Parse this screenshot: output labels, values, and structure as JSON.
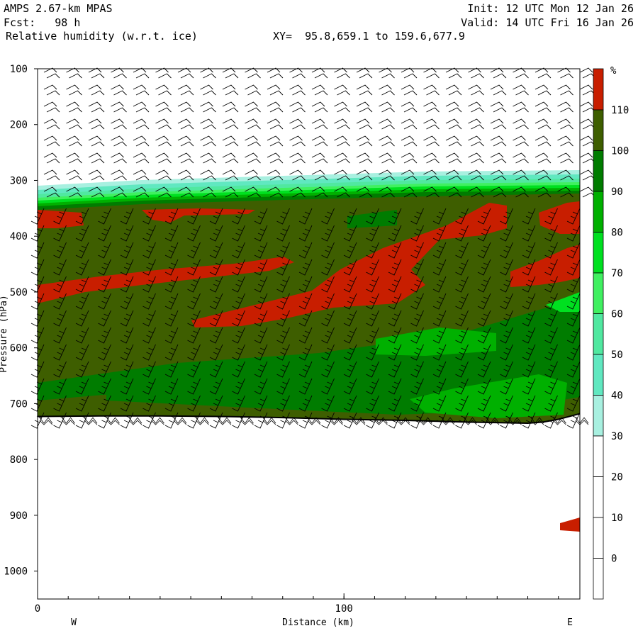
{
  "header": {
    "model": "AMPS 2.67-km MPAS",
    "init": "Init: 12 UTC Mon 12 Jan 26",
    "fcst": "Fcst:   98 h",
    "valid": "Valid: 14 UTC Fri 16 Jan 26",
    "field": "Relative humidity (w.r.t. ice)",
    "xy": "XY=  95.8,659.1 to 159.6,677.9"
  },
  "chart_data": {
    "type": "heatmap",
    "title": "Relative humidity (w.r.t. ice)",
    "xlabel": "Distance (km)",
    "ylabel": "Pressure (hPa)",
    "xlim": [
      0,
      177
    ],
    "ylim": [
      1050,
      100
    ],
    "x_ticks": [
      0,
      100
    ],
    "x_tick_labels": [
      "0",
      "100"
    ],
    "y_ticks": [
      100,
      200,
      300,
      400,
      500,
      600,
      700,
      800,
      900,
      1000
    ],
    "y_tick_labels": [
      "100",
      "200",
      "300",
      "400",
      "500",
      "600",
      "700",
      "800",
      "900",
      "1000"
    ],
    "endpoint_labels": {
      "left": "W",
      "right": "E"
    },
    "terrain_surface_hPa": {
      "x": [
        0,
        20,
        40,
        60,
        80,
        100,
        120,
        140,
        160,
        165,
        170,
        177
      ],
      "p": [
        723,
        722,
        722,
        723,
        725,
        728,
        730,
        733,
        735,
        733,
        728,
        718
      ]
    },
    "moist_layer_top_hPa": 300,
    "colorbar": {
      "unit": "%",
      "levels": [
        "110",
        "100",
        "90",
        "80",
        "70",
        "60",
        "50",
        "40",
        "30",
        "20",
        "10",
        "0"
      ],
      "colors": [
        "#c81e00",
        "#3e5e00",
        "#007c00",
        "#00b000",
        "#00e020",
        "#40f060",
        "#50e8a0",
        "#60e8c0",
        "#a8f0e0",
        "#ffffff",
        "#ffffff",
        "#ffffff",
        "#ffffff"
      ]
    },
    "wind_barbs": true
  }
}
